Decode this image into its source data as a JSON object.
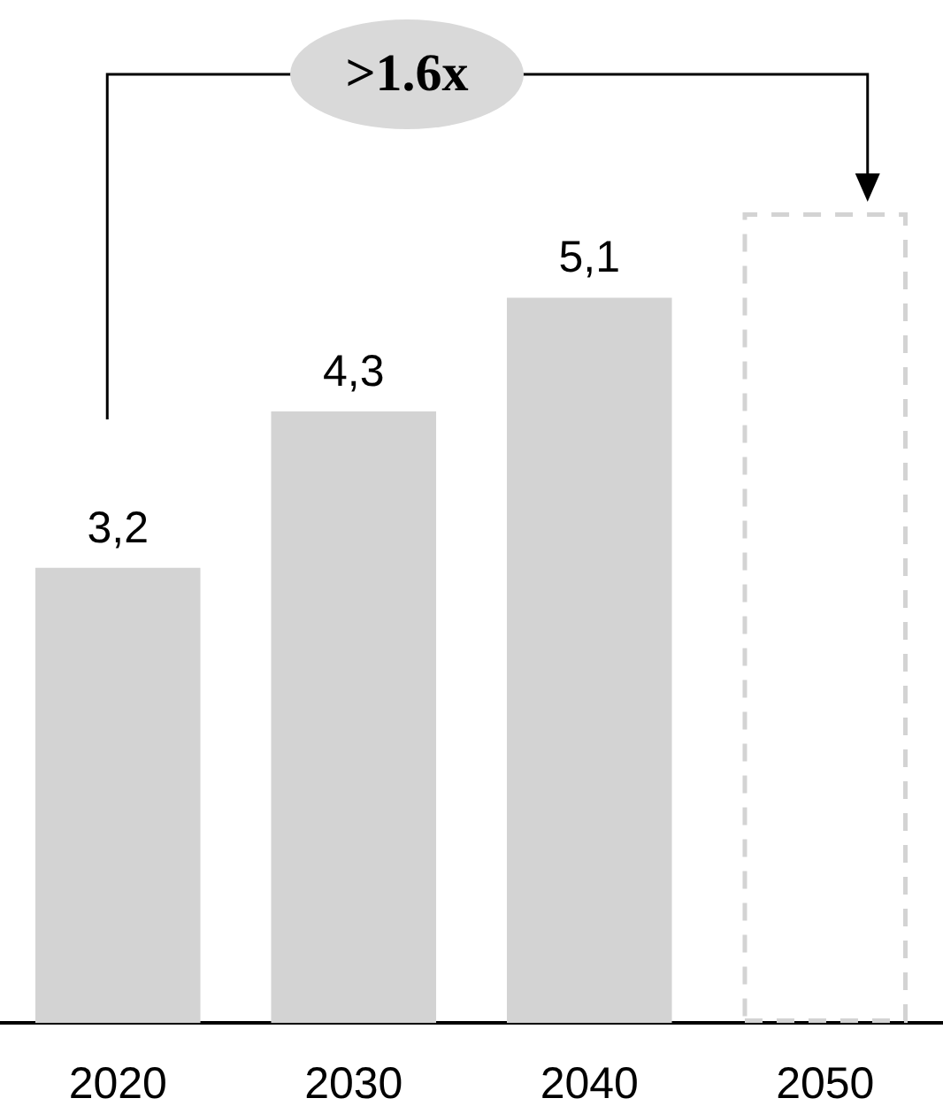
{
  "chart_data": {
    "type": "bar",
    "stacked": true,
    "categories": [
      "2020",
      "2030",
      "2040",
      "2050"
    ],
    "series": [
      {
        "color": "#d3d3d3",
        "values": [
          3.2,
          4.3,
          5.1,
          null
        ],
        "value_labels": [
          "3,2",
          "4,3",
          "5,1",
          null
        ]
      },
      {
        "color": "#d3d3d3",
        "line_style": "dashed",
        "values": [
          null,
          null,
          null,
          5.7
        ]
      }
    ],
    "annotations": [
      ">1.6x"
    ]
  }
}
